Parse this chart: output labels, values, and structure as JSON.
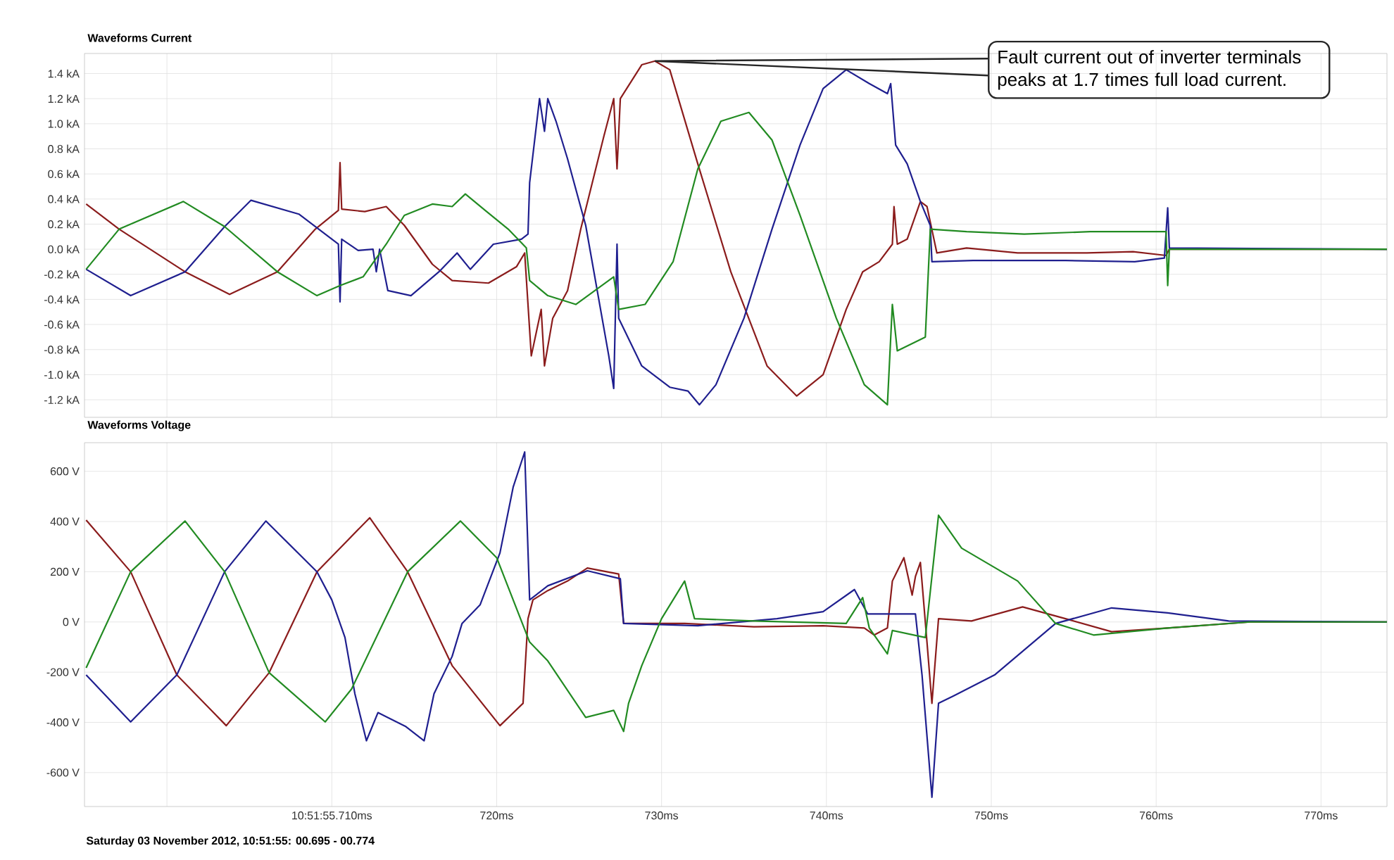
{
  "chart_data": [
    {
      "type": "line",
      "title": "Waveforms Current",
      "xlim": [
        695,
        774
      ],
      "ylim": [
        -1.34,
        1.56
      ],
      "grid": true,
      "tick_labels": "y",
      "xticks": [
        {
          "value": 700,
          "label": null
        },
        {
          "value": 710,
          "label": null
        },
        {
          "value": 720,
          "label": null
        },
        {
          "value": 730,
          "label": null
        },
        {
          "value": 740,
          "label": null
        },
        {
          "value": 750,
          "label": null
        },
        {
          "value": 760,
          "label": null
        },
        {
          "value": 770,
          "label": null
        }
      ],
      "yticks": [
        {
          "value": -1.2,
          "label": "-1.2 kA"
        },
        {
          "value": -1.0,
          "label": "-1.0 kA"
        },
        {
          "value": -0.8,
          "label": "-0.8 kA"
        },
        {
          "value": -0.6,
          "label": "-0.6 kA"
        },
        {
          "value": -0.4,
          "label": "-0.4 kA"
        },
        {
          "value": -0.2,
          "label": "-0.2 kA"
        },
        {
          "value": 0,
          "label": "0.0 kA"
        },
        {
          "value": 0.2,
          "label": "0.2 kA"
        },
        {
          "value": 0.4,
          "label": "0.4 kA"
        },
        {
          "value": 0.6,
          "label": "0.6 kA"
        },
        {
          "value": 0.8,
          "label": "0.8 kA"
        },
        {
          "value": 1.0,
          "label": "1.0 kA"
        },
        {
          "value": 1.2,
          "label": "1.2 kA"
        },
        {
          "value": 1.4,
          "label": "1.4 kA"
        }
      ],
      "annotations": [
        {
          "text": "Fault current out of inverter terminals peaks at 1.7 times full load current.",
          "x": 729.6,
          "y": 1.5
        }
      ],
      "series": [
        {
          "color": "#8b1c1c",
          "x": [
            695.1,
            697.1,
            701.1,
            703.8,
            706.7,
            709.0,
            710.4,
            710.5,
            710.6,
            712.0,
            713.3,
            714.4,
            716.1,
            717.3,
            719.5,
            721.2,
            721.7,
            722.1,
            722.7,
            722.9,
            723.4,
            724.3,
            725.1,
            726.5,
            727.1,
            727.3,
            727.5,
            728.8,
            729.6,
            730.5,
            732.2,
            734.2,
            736.4,
            738.2,
            739.8,
            741.2,
            742.2,
            743.2,
            744.0,
            744.1,
            744.3,
            744.9,
            745.7,
            746.1,
            746.7,
            748.5,
            751.6,
            755.8,
            758.6,
            760.6,
            760.8,
            774
          ],
          "values": [
            0.36,
            0.16,
            -0.18,
            -0.36,
            -0.18,
            0.16,
            0.31,
            0.69,
            0.32,
            0.3,
            0.34,
            0.19,
            -0.12,
            -0.25,
            -0.27,
            -0.14,
            -0.03,
            -0.85,
            -0.48,
            -0.93,
            -0.55,
            -0.33,
            0.16,
            0.9,
            1.2,
            0.64,
            1.2,
            1.47,
            1.5,
            1.43,
            0.68,
            -0.18,
            -0.93,
            -1.17,
            -1.0,
            -0.48,
            -0.18,
            -0.1,
            0.04,
            0.34,
            0.04,
            0.08,
            0.38,
            0.34,
            -0.03,
            0.01,
            -0.03,
            -0.03,
            -0.02,
            -0.05,
            0.0,
            0.0
          ]
        },
        {
          "color": "#1f1f8f",
          "x": [
            695.1,
            697.8,
            701.1,
            703.5,
            705.1,
            708.0,
            710.4,
            710.5,
            710.6,
            711.6,
            712.5,
            712.7,
            712.9,
            713.4,
            714.8,
            716.5,
            717.6,
            718.4,
            719.8,
            721.5,
            721.9,
            722.0,
            722.6,
            722.9,
            723.1,
            723.6,
            724.3,
            725.4,
            726.8,
            727.1,
            727.3,
            727.4,
            728.8,
            730.5,
            731.6,
            732.3,
            733.3,
            735.0,
            736.7,
            738.4,
            739.8,
            741.2,
            742.6,
            743.7,
            743.9,
            744.2,
            744.9,
            745.7,
            746.3,
            746.4,
            748.9,
            754.5,
            758.7,
            760.5,
            760.7,
            760.8,
            774
          ],
          "values": [
            -0.16,
            -0.37,
            -0.18,
            0.18,
            0.39,
            0.28,
            0.04,
            -0.42,
            0.08,
            -0.01,
            0.0,
            -0.18,
            0.0,
            -0.33,
            -0.37,
            -0.18,
            -0.03,
            -0.16,
            0.04,
            0.08,
            0.12,
            0.53,
            1.2,
            0.94,
            1.2,
            1.02,
            0.72,
            0.19,
            -0.85,
            -1.11,
            0.04,
            -0.55,
            -0.93,
            -1.1,
            -1.13,
            -1.24,
            -1.08,
            -0.55,
            0.16,
            0.83,
            1.28,
            1.43,
            1.32,
            1.24,
            1.32,
            0.83,
            0.68,
            0.38,
            0.19,
            -0.1,
            -0.09,
            -0.09,
            -0.1,
            -0.07,
            0.33,
            0.01,
            0.0
          ]
        },
        {
          "color": "#228b22",
          "x": [
            695.1,
            697.1,
            701.0,
            703.5,
            706.7,
            709.1,
            710.5,
            711.9,
            713.3,
            714.4,
            716.1,
            717.3,
            718.1,
            719.3,
            720.7,
            721.8,
            722.0,
            723.1,
            724.8,
            727.1,
            727.4,
            729.0,
            730.7,
            732.2,
            733.6,
            735.3,
            736.7,
            738.4,
            740.6,
            742.3,
            743.7,
            744.0,
            744.3,
            746.0,
            746.3,
            748.5,
            752.0,
            756.0,
            760.6,
            760.7,
            760.8,
            774
          ],
          "values": [
            -0.16,
            0.16,
            0.38,
            0.18,
            -0.18,
            -0.37,
            -0.29,
            -0.22,
            0.04,
            0.27,
            0.36,
            0.34,
            0.44,
            0.31,
            0.16,
            0.01,
            -0.25,
            -0.37,
            -0.44,
            -0.22,
            -0.48,
            -0.44,
            -0.1,
            0.64,
            1.02,
            1.09,
            0.87,
            0.27,
            -0.55,
            -1.08,
            -1.24,
            -0.44,
            -0.81,
            -0.7,
            0.16,
            0.14,
            0.12,
            0.14,
            0.14,
            -0.29,
            0.0,
            0.0
          ]
        }
      ]
    },
    {
      "type": "line",
      "title": "Waveforms Voltage",
      "xlim": [
        695,
        774
      ],
      "ylim": [
        -735,
        714
      ],
      "grid": true,
      "xticks": [
        {
          "value": 700,
          "label": null
        },
        {
          "value": 710,
          "label": "10:51:55.710ms"
        },
        {
          "value": 720,
          "label": "720ms"
        },
        {
          "value": 730,
          "label": "730ms"
        },
        {
          "value": 740,
          "label": "740ms"
        },
        {
          "value": 750,
          "label": "750ms"
        },
        {
          "value": 760,
          "label": "760ms"
        },
        {
          "value": 770,
          "label": "770ms"
        }
      ],
      "yticks": [
        {
          "value": -600,
          "label": "-600 V"
        },
        {
          "value": -400,
          "label": "-400 V"
        },
        {
          "value": -200,
          "label": "-200 V"
        },
        {
          "value": 0,
          "label": "0 V"
        },
        {
          "value": 200,
          "label": "200 V"
        },
        {
          "value": 400,
          "label": "400 V"
        },
        {
          "value": 600,
          "label": "600 V"
        }
      ],
      "annotations": [
        "Saturday 03 November 2012, 10:51:55: 00.695 - 00.774"
      ],
      "series": [
        {
          "color": "#8b1c1c",
          "x": [
            695.1,
            697.8,
            700.6,
            703.6,
            706.2,
            709.1,
            712.3,
            714.6,
            717.3,
            720.2,
            721.6,
            721.9,
            722.2,
            723.1,
            724.3,
            725.5,
            727.4,
            727.7,
            731.4,
            735.6,
            739.8,
            742.3,
            742.9,
            743.7,
            744.0,
            744.7,
            745.2,
            745.4,
            745.7,
            746.1,
            746.4,
            746.8,
            748.8,
            751.9,
            754.5,
            757.3,
            760.7,
            765.7,
            774
          ],
          "values": [
            406,
            200,
            -211,
            -413,
            -202,
            200,
            415,
            200,
            -174,
            -413,
            -324,
            13,
            88,
            125,
            163,
            215,
            191,
            -6,
            -6,
            -19,
            -15,
            -24,
            -52,
            -24,
            163,
            256,
            107,
            181,
            237,
            -80,
            -324,
            13,
            4,
            60,
            13,
            -39,
            -24,
            0,
            0
          ]
        },
        {
          "color": "#1f1f8f",
          "x": [
            695.1,
            697.8,
            700.6,
            703.5,
            706.0,
            709.1,
            710.0,
            710.8,
            711.4,
            712.1,
            712.8,
            714.5,
            715.6,
            716.2,
            717.3,
            717.9,
            719.0,
            720.2,
            721.0,
            721.7,
            722.0,
            723.1,
            725.5,
            727.5,
            727.7,
            732.2,
            737.0,
            739.8,
            741.7,
            742.5,
            745.4,
            745.8,
            746.4,
            746.8,
            747.7,
            750.2,
            753.9,
            757.3,
            760.7,
            764.4,
            774
          ],
          "values": [
            -211,
            -398,
            -211,
            200,
            402,
            200,
            88,
            -62,
            -286,
            -473,
            -361,
            -417,
            -473,
            -286,
            -137,
            -6,
            69,
            275,
            537,
            677,
            88,
            144,
            204,
            172,
            -6,
            -15,
            13,
            41,
            129,
            32,
            32,
            -211,
            -698,
            -324,
            -295,
            -211,
            -6,
            56,
            36,
            4,
            0
          ]
        },
        {
          "color": "#228b22",
          "x": [
            695.1,
            697.8,
            701.1,
            703.5,
            706.2,
            709.6,
            711.2,
            714.6,
            717.8,
            720.0,
            722.0,
            723.1,
            725.4,
            727.1,
            727.7,
            728.0,
            728.8,
            730.0,
            731.4,
            732.0,
            735.6,
            741.2,
            742.2,
            742.6,
            743.7,
            744.0,
            746.0,
            746.8,
            748.2,
            751.6,
            753.9,
            756.2,
            760.7,
            765.7,
            774
          ],
          "values": [
            -183,
            200,
            402,
            200,
            -202,
            -398,
            -267,
            200,
            402,
            256,
            -80,
            -155,
            -380,
            -352,
            -436,
            -324,
            -174,
            13,
            163,
            13,
            4,
            -6,
            97,
            -24,
            -127,
            -34,
            -62,
            425,
            294,
            163,
            -6,
            -52,
            -24,
            0,
            0
          ]
        }
      ]
    }
  ]
}
